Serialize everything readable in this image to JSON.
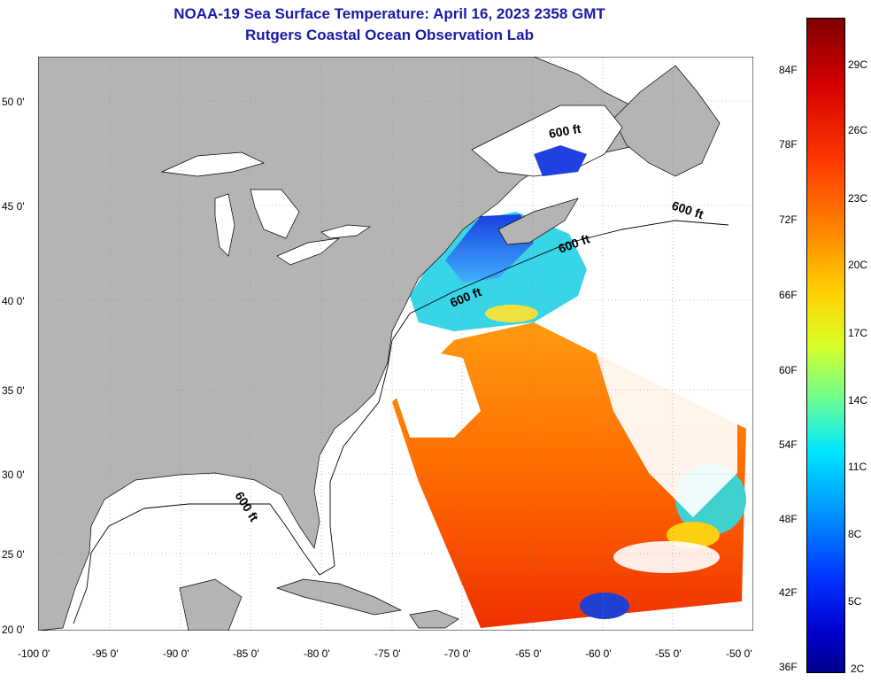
{
  "title": "NOAA-19 Sea Surface Temperature:  April 16, 2023 2358 GMT",
  "subtitle": "Rutgers Coastal Ocean Observation Lab",
  "lat_labels": [
    "50 0'",
    "45 0'",
    "40 0'",
    "35 0'",
    "30 0'",
    "25 0'",
    "20 0'"
  ],
  "lon_labels": [
    "-100 0'",
    "-95 0'",
    "-90 0'",
    "-85 0'",
    "-80 0'",
    "-75 0'",
    "-70 0'",
    "-65 0'",
    "-60 0'",
    "-55 0'",
    "-50 0'"
  ],
  "colorbar": {
    "fahrenheit": [
      "84F",
      "78F",
      "72F",
      "66F",
      "60F",
      "54F",
      "48F",
      "42F",
      "36F"
    ],
    "celsius": [
      "29C",
      "26C",
      "23C",
      "20C",
      "17C",
      "14C",
      "11C",
      "8C",
      "5C",
      "2C"
    ]
  },
  "isobath_label": "600 ft",
  "colors": {
    "title": "#1a1aa6",
    "land": "#b4b4b4",
    "clouds": "#ffffff"
  }
}
